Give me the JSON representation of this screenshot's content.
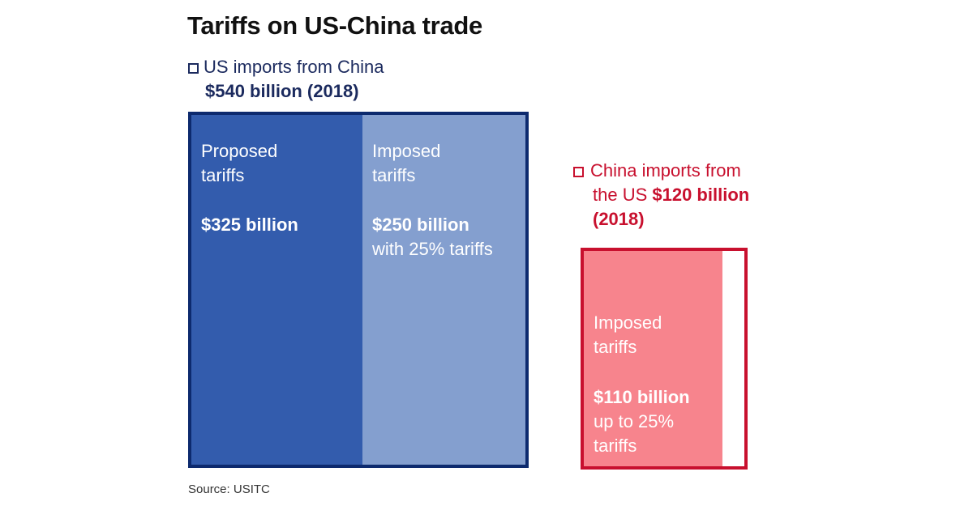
{
  "chart_data": {
    "type": "treemap",
    "title": "Tariffs on US-China trade",
    "source": "Source: USITC",
    "colors": {
      "us_border": "#0d2a6e",
      "us_proposed": "#335cad",
      "us_imposed": "#849fcf",
      "cn_border": "#c8102e",
      "cn_imposed": "#f7848d"
    },
    "groups": [
      {
        "legend_line1": "US imports from China",
        "legend_amount": "$540 billion (2018)",
        "total": 540,
        "segments": [
          {
            "label_line1": "Proposed",
            "label_line2": "tariffs",
            "value_label": "$325 billion",
            "note": "",
            "value": 325
          },
          {
            "label_line1": "Imposed",
            "label_line2": "tariffs",
            "value_label": "$250 billion",
            "note": "with 25% tariffs",
            "value": 250
          }
        ]
      },
      {
        "legend_line1": "China imports from",
        "legend_line2_prefix": "the US ",
        "legend_amount": "$120 billion",
        "legend_year": "(2018)",
        "total": 120,
        "segments": [
          {
            "label_line1": "Imposed",
            "label_line2": "tariffs",
            "value_label": "$110 billion",
            "note_line1": "up to 25%",
            "note_line2": "tariffs",
            "value": 110
          }
        ]
      }
    ]
  }
}
